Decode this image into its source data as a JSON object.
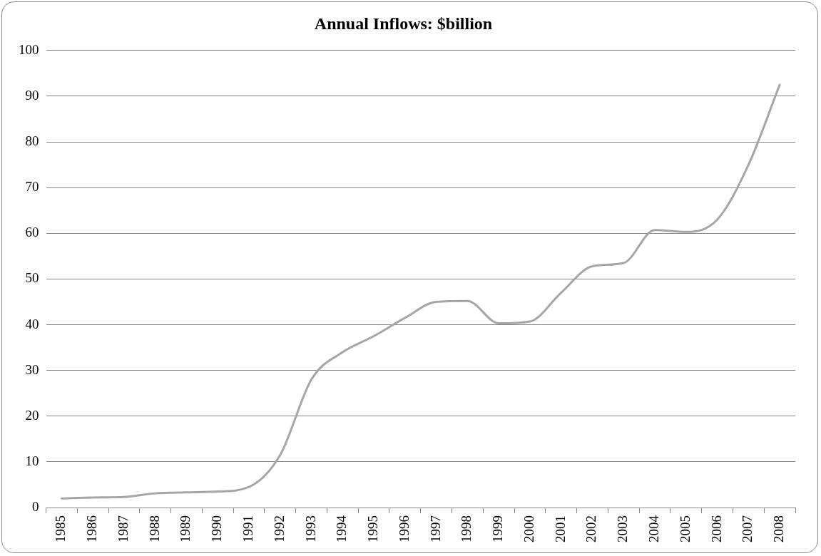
{
  "chart_data": {
    "type": "line",
    "title": "Annual Inflows: $billion",
    "categories": [
      "1985",
      "1986",
      "1987",
      "1988",
      "1989",
      "1990",
      "1991",
      "1992",
      "1993",
      "1994",
      "1995",
      "1996",
      "1997",
      "1998",
      "1999",
      "2000",
      "2001",
      "2002",
      "2003",
      "2004",
      "2005",
      "2006",
      "2007",
      "2008"
    ],
    "series": [
      {
        "color": "#a6a6a6",
        "values": [
          2.0,
          2.2,
          2.3,
          3.1,
          3.3,
          3.5,
          4.5,
          11.5,
          28,
          34,
          37.5,
          41.5,
          45,
          45.2,
          40.3,
          40.7,
          47,
          52.8,
          53.5,
          60.7,
          60.3,
          63,
          75,
          92.5
        ]
      }
    ],
    "ylim": [
      0,
      100
    ],
    "yticks": [
      0,
      10,
      20,
      30,
      40,
      50,
      60,
      70,
      80,
      90,
      100
    ],
    "grid": "y",
    "legend": false,
    "marker": "none",
    "line_style": "solid"
  }
}
